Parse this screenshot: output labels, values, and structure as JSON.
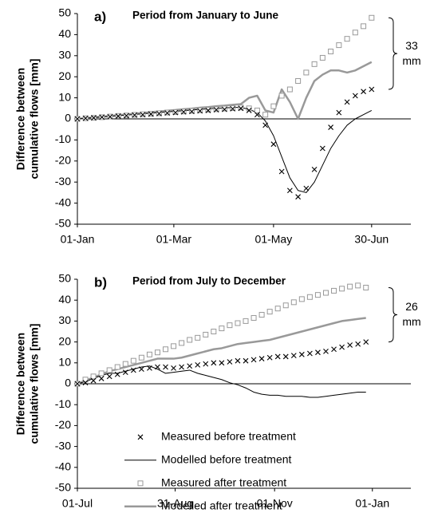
{
  "chart_data": [
    {
      "type": "line",
      "label": "a)",
      "title": "Period from January to June",
      "ylabel": [
        "Difference between",
        "cumulative flows [mm]"
      ],
      "annotation": [
        "33",
        "mm"
      ],
      "xlim": [
        0,
        204
      ],
      "ylim": [
        -50,
        50
      ],
      "xticks": [
        {
          "value": 0,
          "label": "01-Jan"
        },
        {
          "value": 59,
          "label": "01-Mar"
        },
        {
          "value": 120,
          "label": "01-May"
        },
        {
          "value": 180,
          "label": "30-Jun"
        }
      ],
      "yticks": [
        -50,
        -40,
        -30,
        -20,
        -10,
        0,
        10,
        20,
        30,
        40,
        50
      ],
      "x": [
        0,
        5,
        10,
        15,
        20,
        25,
        30,
        35,
        40,
        45,
        50,
        55,
        60,
        65,
        70,
        75,
        80,
        85,
        90,
        95,
        100,
        105,
        110,
        115,
        120,
        125,
        130,
        135,
        140,
        145,
        150,
        155,
        160,
        165,
        170,
        175,
        180
      ],
      "series": [
        {
          "style": "x",
          "color": "#000000",
          "values": [
            0,
            0.3,
            0.5,
            0.8,
            1,
            1.3,
            1.5,
            1.8,
            2,
            2.3,
            2.5,
            2.8,
            3,
            3.3,
            3.5,
            3.8,
            4,
            4.3,
            4.5,
            4.8,
            5,
            4,
            2,
            -3,
            -12,
            -25,
            -34,
            -37,
            -33,
            -24,
            -14,
            -4,
            3,
            8,
            11,
            13,
            14
          ]
        },
        {
          "style": "line",
          "line_width": 1,
          "color": "#000000",
          "values": [
            0,
            0.3,
            0.6,
            0.9,
            1.2,
            1.5,
            1.8,
            2.1,
            2.4,
            2.7,
            3,
            3.3,
            3.6,
            3.9,
            4.2,
            4.5,
            4.8,
            5,
            5.2,
            5.4,
            5.5,
            4.5,
            3,
            -1,
            -8,
            -18,
            -28,
            -34,
            -35,
            -30,
            -22,
            -14,
            -8,
            -3,
            0,
            2,
            4
          ]
        },
        {
          "style": "square",
          "color": "#999999",
          "values": [
            0,
            0.3,
            0.5,
            0.8,
            1.1,
            1.4,
            1.6,
            1.9,
            2.2,
            2.4,
            2.7,
            3,
            3.2,
            3.5,
            3.8,
            4.1,
            4.3,
            4.6,
            4.9,
            5.1,
            5.4,
            5,
            4,
            2,
            6,
            11,
            14,
            18,
            22,
            26,
            29,
            32,
            35,
            38,
            41,
            44,
            48
          ]
        },
        {
          "style": "line",
          "line_width": 2.5,
          "color": "#999999",
          "values": [
            0,
            0.4,
            0.7,
            1.1,
            1.4,
            1.8,
            2.1,
            2.5,
            2.8,
            3.2,
            3.5,
            3.9,
            4.2,
            4.6,
            4.9,
            5.3,
            5.6,
            6,
            6.3,
            6.7,
            7,
            10,
            11,
            4,
            3,
            14,
            8,
            0,
            10,
            18,
            21,
            23,
            23,
            22,
            23,
            25,
            27
          ]
        }
      ]
    },
    {
      "type": "line",
      "label": "b)",
      "title": "Period from July to December",
      "ylabel": [
        "Difference between",
        "cumulative flows [mm]"
      ],
      "annotation": [
        "26",
        "mm"
      ],
      "legend": "lower-center",
      "xlim": [
        0,
        208
      ],
      "ylim": [
        -50,
        50
      ],
      "xticks": [
        {
          "value": 0,
          "label": "01-Jul"
        },
        {
          "value": 61,
          "label": "31-Aug"
        },
        {
          "value": 123,
          "label": "01-Nov"
        },
        {
          "value": 184,
          "label": "01-Jan"
        }
      ],
      "yticks": [
        -50,
        -40,
        -30,
        -20,
        -10,
        0,
        10,
        20,
        30,
        40,
        50
      ],
      "x": [
        0,
        5,
        10,
        15,
        20,
        25,
        30,
        35,
        40,
        45,
        50,
        55,
        60,
        65,
        70,
        75,
        80,
        85,
        90,
        95,
        100,
        105,
        110,
        115,
        120,
        125,
        130,
        135,
        140,
        145,
        150,
        155,
        160,
        165,
        170,
        175,
        180
      ],
      "series": [
        {
          "name": "Measured before treatment",
          "style": "x",
          "color": "#000000",
          "values": [
            0,
            0.5,
            1.5,
            2.5,
            3.5,
            4.5,
            5.5,
            6.5,
            7,
            7.5,
            8,
            8,
            7.5,
            8,
            8.5,
            9,
            9.5,
            10,
            10,
            10.5,
            11,
            11,
            11.5,
            12,
            12.5,
            13,
            13,
            13.5,
            14,
            14.5,
            15,
            15.5,
            16.5,
            17.5,
            18.5,
            19,
            20
          ]
        },
        {
          "name": "Modelled before treatment",
          "style": "line",
          "line_width": 1,
          "color": "#000000",
          "values": [
            0,
            1,
            2.5,
            4,
            5,
            5,
            6,
            7,
            8,
            8.5,
            7,
            5,
            5.5,
            6,
            6.5,
            5,
            4,
            3,
            2,
            0.5,
            -0.5,
            -2,
            -4,
            -5,
            -5.5,
            -5.5,
            -6,
            -6,
            -6,
            -6.5,
            -6.5,
            -6,
            -5.5,
            -5,
            -4.5,
            -4,
            -4
          ]
        },
        {
          "name": "Measured after treatment",
          "style": "square",
          "color": "#999999",
          "values": [
            0,
            2,
            3.5,
            5,
            6.5,
            8,
            9.5,
            11,
            12.5,
            14,
            15,
            16.5,
            18,
            19.5,
            21,
            22,
            23.5,
            25,
            26.5,
            28,
            29,
            30,
            31.5,
            33,
            34.5,
            36,
            37.5,
            39,
            40.5,
            41.5,
            42.5,
            43.5,
            44.5,
            45.5,
            46.5,
            47,
            46
          ]
        },
        {
          "name": "Modelled after treatment",
          "style": "line",
          "line_width": 2.5,
          "color": "#999999",
          "values": [
            0,
            1.5,
            3,
            4.5,
            6,
            7,
            8,
            9,
            10,
            11,
            12,
            12,
            12,
            12.5,
            13.5,
            14.5,
            15.5,
            16.5,
            17,
            18,
            19,
            19.5,
            20,
            20.5,
            21,
            22,
            23,
            24,
            25,
            26,
            27,
            28,
            29,
            30,
            30.5,
            31,
            31.5
          ]
        }
      ]
    }
  ]
}
